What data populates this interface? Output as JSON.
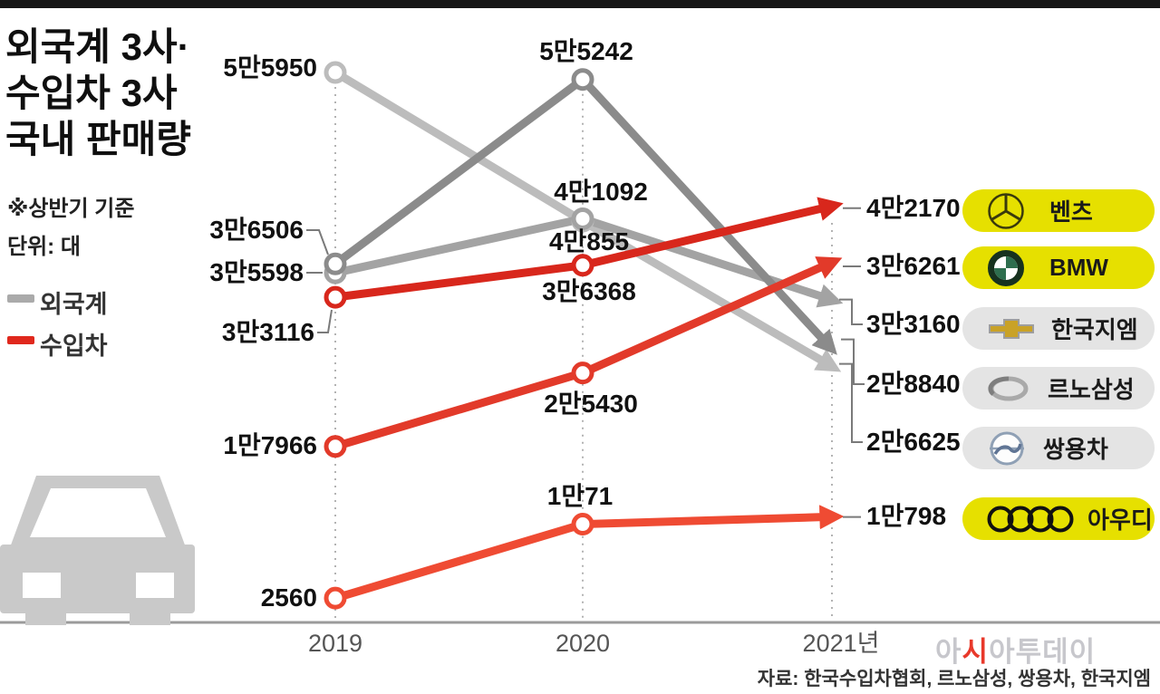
{
  "header": {
    "title_line1": "외국계 3사·",
    "title_line2": "수입차 3사",
    "title_line3": "국내 판매량",
    "note": "※상반기 기준",
    "unit": "단위: 대"
  },
  "legend": {
    "foreign_label": "외국계",
    "foreign_color": "#aaaaaa",
    "import_label": "수입차",
    "import_color": "#e0281d"
  },
  "axis": {
    "year1": "2019",
    "year2": "2020",
    "year3": "2021년"
  },
  "chart_data": {
    "type": "line",
    "x": [
      "2019",
      "2020",
      "2021"
    ],
    "x_note": "상반기(H1) 기준, 단위: 대",
    "ylim": [
      0,
      56000
    ],
    "grid": false,
    "legend_position": "left",
    "series": [
      {
        "name": "쌍용차",
        "group": "외국계",
        "color": "#bcbcbc",
        "values": [
          55950,
          40855,
          26625
        ],
        "labels": [
          "5만5950",
          "4만855",
          "2만6625"
        ]
      },
      {
        "name": "한국지엠",
        "group": "외국계",
        "color": "#a3a3a3",
        "values": [
          35598,
          41092,
          33160
        ],
        "labels": [
          "3만5598",
          "4만1092",
          "3만3160"
        ]
      },
      {
        "name": "르노삼성",
        "group": "외국계",
        "color": "#8b8b8b",
        "values": [
          36506,
          55242,
          28840
        ],
        "labels": [
          "3만6506",
          "5만5242",
          "2만8840"
        ]
      },
      {
        "name": "벤츠",
        "group": "수입차",
        "color": "#d8271c",
        "values": [
          33116,
          36368,
          42170
        ],
        "labels": [
          "3만3116",
          "3만6368",
          "4만2170"
        ]
      },
      {
        "name": "BMW",
        "group": "수입차",
        "color": "#e23a2a",
        "values": [
          17966,
          25430,
          36261
        ],
        "labels": [
          "1만7966",
          "2만5430",
          "3만6261"
        ]
      },
      {
        "name": "아우디",
        "group": "수입차",
        "color": "#ef4b33",
        "values": [
          2560,
          10071,
          10798
        ],
        "labels": [
          "2560",
          "1만71",
          "1만798"
        ]
      }
    ]
  },
  "brands": {
    "benz": {
      "label": "벤츠",
      "pill_color": "#e6e000"
    },
    "bmw": {
      "label": "BMW",
      "pill_color": "#e6e000"
    },
    "gm": {
      "label": "한국지엠",
      "pill_color": "#e4e4e4"
    },
    "renault": {
      "label": "르노삼성",
      "pill_color": "#e4e4e4"
    },
    "ssangyong": {
      "label": "쌍용차",
      "pill_color": "#e4e4e4"
    },
    "audi": {
      "label": "아우디",
      "pill_color": "#e6e000"
    }
  },
  "source": "자료: 한국수입차협회, 르노삼성, 쌍용차, 한국지엠",
  "watermark": {
    "part1": "아",
    "part2": "시",
    "part3": "아투데이"
  }
}
